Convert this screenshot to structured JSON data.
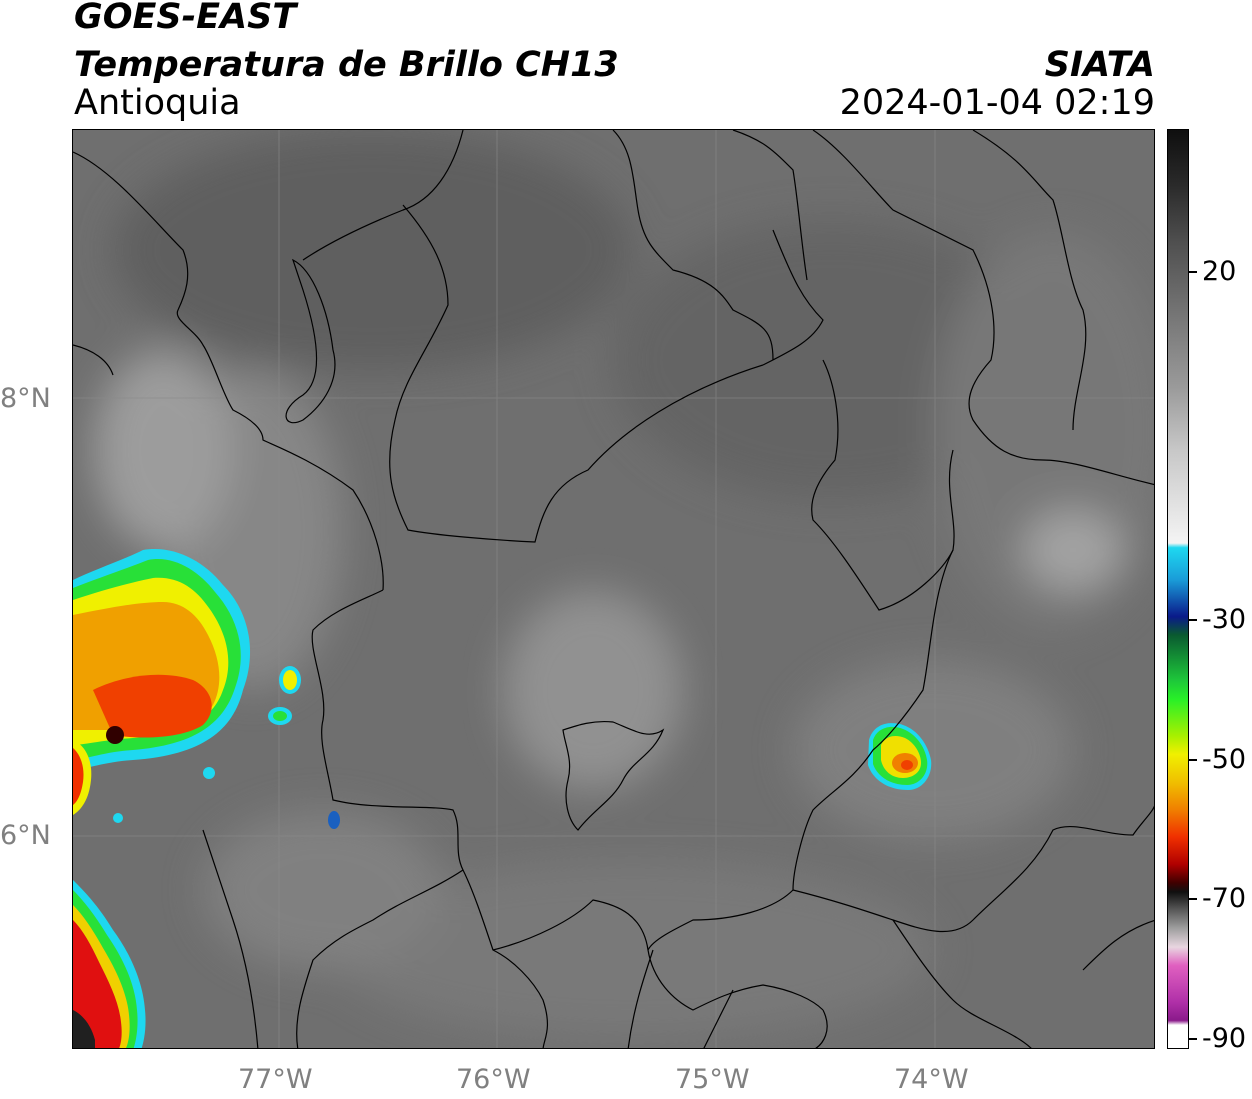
{
  "header": {
    "satellite": "GOES-EAST",
    "product": "Temperatura de Brillo CH13",
    "region": "Antioquia",
    "agency": "SIATA",
    "datetime": "2024-01-04 02:19"
  },
  "axes": {
    "longitude_labels": [
      "77°W",
      "76°W",
      "75°W",
      "74°W"
    ],
    "latitude_labels": [
      "8°N",
      "6°N"
    ]
  },
  "colorbar": {
    "tick_labels": [
      "20",
      "-30",
      "-50",
      "-70",
      "-90"
    ],
    "tick_values": [
      20,
      -30,
      -50,
      -70,
      -90
    ],
    "colors": {
      "warm_gray": "#6e6e6e",
      "cold_cyan": "#1ed8f0",
      "green": "#28f028",
      "yellow": "#f0f000",
      "red": "#d01010",
      "magenta": "#b030a8"
    }
  },
  "storm_cells": [
    {
      "name": "western-convective-system",
      "min_temp_c": -70
    },
    {
      "name": "eastern-convective-cell",
      "min_temp_c": -55
    },
    {
      "name": "southwest-convective-system",
      "min_temp_c": -75
    }
  ]
}
